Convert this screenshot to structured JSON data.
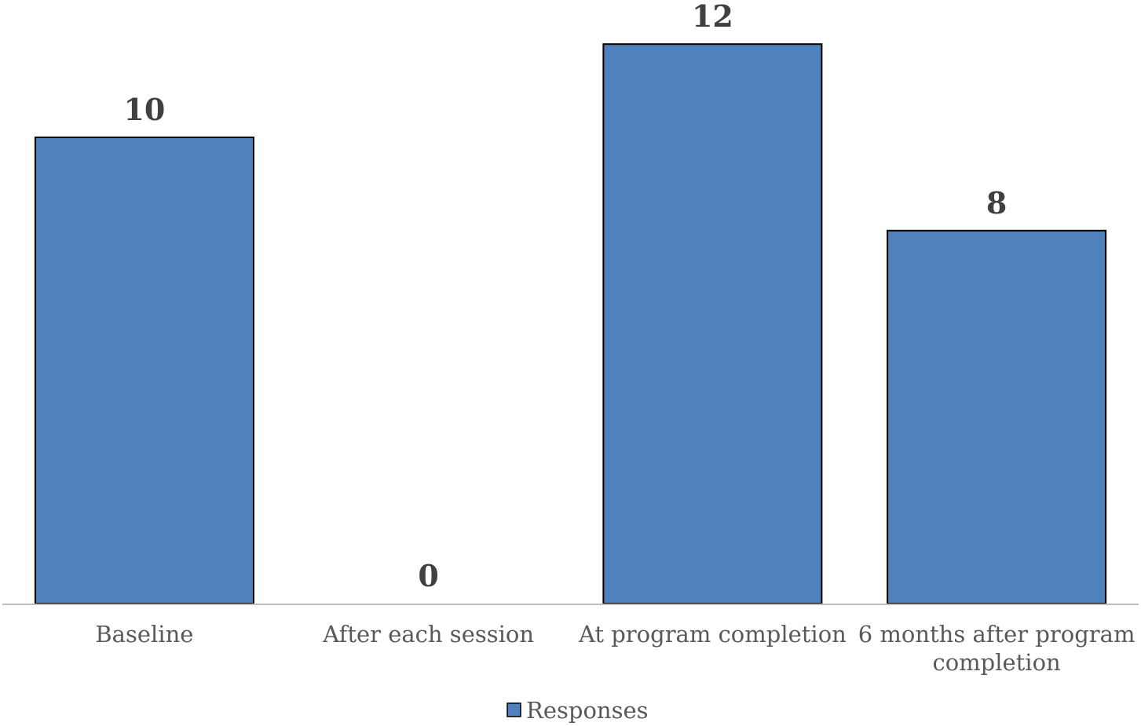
{
  "colors": {
    "bar_fill": "#4f81bd",
    "bar_stroke": "#000000",
    "axis": "#bfbfbf",
    "label_text": "#404040",
    "tick_text": "#595959"
  },
  "chart_data": {
    "type": "bar",
    "title": "",
    "xlabel": "",
    "ylabel": "",
    "categories": [
      [
        "Baseline"
      ],
      [
        "After each session"
      ],
      [
        "At program completion"
      ],
      [
        "6 months after program",
        "completion"
      ]
    ],
    "series": [
      {
        "name": "Responses",
        "values": [
          10,
          0,
          12,
          8
        ]
      }
    ],
    "ylim": [
      0,
      13
    ],
    "grid": false,
    "legend": {
      "position": "bottom",
      "entries": [
        "Responses"
      ]
    },
    "data_labels": true
  }
}
